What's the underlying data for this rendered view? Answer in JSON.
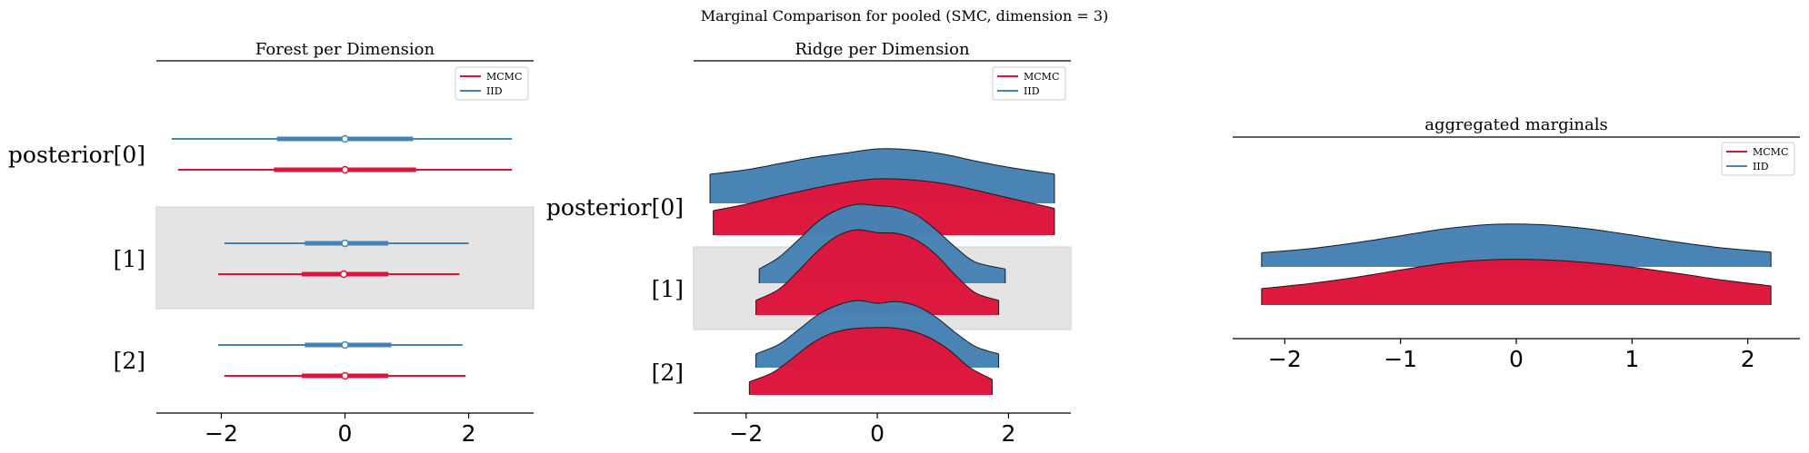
{
  "figure": {
    "suptitle": "Marginal Comparison for pooled (SMC, dimension = 3)"
  },
  "colors": {
    "mcmc": "#DC143C",
    "iid": "#4682B4",
    "shade": "#E4E4E4",
    "outline": "#1a1a1a"
  },
  "chart_data": [
    {
      "type": "forest",
      "title": "Forest per Dimension",
      "xlabel": "",
      "ylabel": "",
      "xlim": [
        -3.05,
        3.05
      ],
      "xticks": [
        -2,
        0,
        2
      ],
      "xtick_labels": [
        "−2",
        "0",
        "2"
      ],
      "row_labels": [
        "posterior[0]",
        "[1]",
        "[2]"
      ],
      "shaded_rows": [
        1
      ],
      "legend": {
        "entries": [
          "MCMC",
          "IID"
        ],
        "placement": "top-right"
      },
      "series": [
        {
          "name": "IID",
          "color_key": "iid",
          "intervals": [
            {
              "row": 0,
              "low": -2.8,
              "q25": -1.1,
              "median": 0.0,
              "q75": 1.1,
              "high": 2.7
            },
            {
              "row": 1,
              "low": -1.95,
              "q25": -0.65,
              "median": 0.0,
              "q75": 0.7,
              "high": 2.0
            },
            {
              "row": 2,
              "low": -2.05,
              "q25": -0.65,
              "median": 0.0,
              "q75": 0.75,
              "high": 1.9
            }
          ]
        },
        {
          "name": "MCMC",
          "color_key": "mcmc",
          "intervals": [
            {
              "row": 0,
              "low": -2.7,
              "q25": -1.15,
              "median": 0.0,
              "q75": 1.15,
              "high": 2.7
            },
            {
              "row": 1,
              "low": -2.05,
              "q25": -0.7,
              "median": -0.02,
              "q75": 0.7,
              "high": 1.85
            },
            {
              "row": 2,
              "low": -1.95,
              "q25": -0.7,
              "median": 0.0,
              "q75": 0.7,
              "high": 1.95
            }
          ]
        }
      ]
    },
    {
      "type": "ridge",
      "title": "Ridge per Dimension",
      "xlabel": "",
      "ylabel": "",
      "xlim": [
        -2.8,
        2.95
      ],
      "xticks": [
        -2,
        0,
        2
      ],
      "xtick_labels": [
        "−2",
        "0",
        "2"
      ],
      "row_labels": [
        "posterior[0]",
        "[1]",
        "[2]"
      ],
      "shaded_rows": [
        1
      ],
      "legend": {
        "entries": [
          "MCMC",
          "IID"
        ],
        "placement": "top-right"
      },
      "series": [
        {
          "name": "IID",
          "color_key": "iid",
          "densities": [
            {
              "row": 0,
              "x": [
                -2.55,
                -2.0,
                -1.5,
                -1.0,
                -0.5,
                0.0,
                0.5,
                1.0,
                1.5,
                2.0,
                2.7
              ],
              "y": [
                0.42,
                0.52,
                0.66,
                0.8,
                0.9,
                1.0,
                0.98,
                0.88,
                0.72,
                0.58,
                0.42
              ]
            },
            {
              "row": 1,
              "x": [
                -1.8,
                -1.5,
                -1.2,
                -0.9,
                -0.6,
                -0.3,
                0.0,
                0.3,
                0.6,
                0.9,
                1.2,
                1.5,
                1.95
              ],
              "y": [
                0.05,
                0.22,
                0.48,
                0.75,
                0.92,
                1.0,
                0.98,
                0.95,
                0.84,
                0.62,
                0.36,
                0.15,
                0.05
              ]
            },
            {
              "row": 2,
              "x": [
                -1.85,
                -1.5,
                -1.2,
                -0.9,
                -0.6,
                -0.3,
                0.0,
                0.3,
                0.6,
                0.9,
                1.2,
                1.5,
                1.85
              ],
              "y": [
                0.05,
                0.22,
                0.48,
                0.75,
                0.92,
                1.0,
                0.95,
                0.98,
                0.9,
                0.7,
                0.42,
                0.18,
                0.05
              ]
            }
          ]
        },
        {
          "name": "MCMC",
          "color_key": "mcmc",
          "densities": [
            {
              "row": 0,
              "x": [
                -2.5,
                -2.0,
                -1.5,
                -1.0,
                -0.5,
                0.0,
                0.5,
                1.0,
                1.5,
                2.0,
                2.7
              ],
              "y": [
                0.3,
                0.44,
                0.62,
                0.78,
                0.92,
                1.0,
                0.98,
                0.9,
                0.75,
                0.58,
                0.35
              ]
            },
            {
              "row": 1,
              "x": [
                -1.85,
                -1.5,
                -1.2,
                -0.9,
                -0.6,
                -0.3,
                0.0,
                0.3,
                0.6,
                0.9,
                1.2,
                1.5,
                1.85
              ],
              "y": [
                0.05,
                0.2,
                0.45,
                0.72,
                0.92,
                1.0,
                0.96,
                0.95,
                0.86,
                0.66,
                0.38,
                0.15,
                0.05
              ]
            },
            {
              "row": 2,
              "x": [
                -1.95,
                -1.6,
                -1.3,
                -1.0,
                -0.7,
                -0.4,
                -0.1,
                0.2,
                0.5,
                0.8,
                1.1,
                1.4,
                1.75
              ],
              "y": [
                0.04,
                0.2,
                0.45,
                0.72,
                0.9,
                0.98,
                1.0,
                1.0,
                0.95,
                0.82,
                0.6,
                0.3,
                0.08
              ]
            }
          ]
        }
      ]
    },
    {
      "type": "ridge",
      "title": "aggregated marginals",
      "xlabel": "",
      "ylabel": "",
      "xlim": [
        -2.45,
        2.45
      ],
      "xticks": [
        -2,
        -1,
        0,
        1,
        2
      ],
      "xtick_labels": [
        "−2",
        "−1",
        "0",
        "1",
        "2"
      ],
      "row_labels": [],
      "shaded_rows": [],
      "legend": {
        "entries": [
          "MCMC",
          "IID"
        ],
        "placement": "top-right"
      },
      "series": [
        {
          "name": "IID",
          "color_key": "iid",
          "densities": [
            {
              "row": 0,
              "x": [
                -2.2,
                -1.8,
                -1.4,
                -1.0,
                -0.6,
                -0.2,
                0.2,
                0.6,
                1.0,
                1.4,
                1.8,
                2.2
              ],
              "y": [
                0.1,
                0.22,
                0.4,
                0.62,
                0.84,
                0.97,
                0.96,
                0.84,
                0.64,
                0.42,
                0.24,
                0.12
              ]
            }
          ]
        },
        {
          "name": "MCMC",
          "color_key": "mcmc",
          "densities": [
            {
              "row": 0,
              "x": [
                -2.2,
                -1.8,
                -1.4,
                -1.0,
                -0.6,
                -0.2,
                0.2,
                0.6,
                1.0,
                1.4,
                1.8,
                2.2
              ],
              "y": [
                0.16,
                0.3,
                0.48,
                0.7,
                0.9,
                1.0,
                1.0,
                0.92,
                0.78,
                0.6,
                0.4,
                0.24
              ]
            }
          ]
        }
      ]
    }
  ]
}
